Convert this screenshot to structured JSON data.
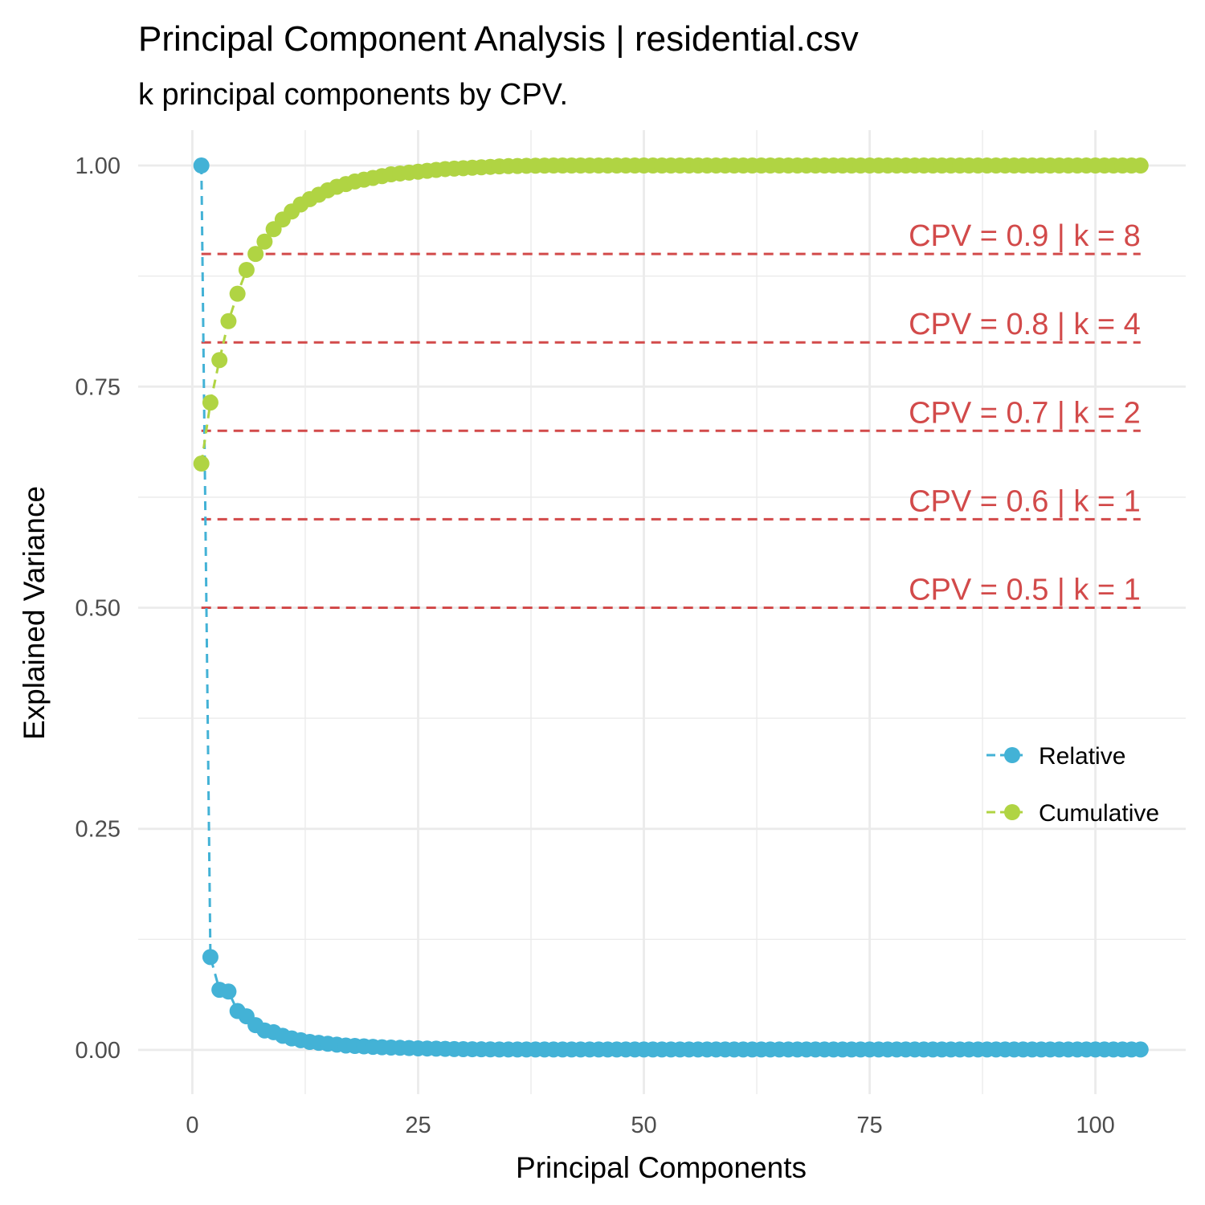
{
  "chart_data": {
    "type": "line",
    "title": "Principal Component Analysis | residential.csv",
    "subtitle": "k principal components by CPV.",
    "xlabel": "Principal Components",
    "ylabel": "Explained Variance",
    "xlim": [
      -6,
      110
    ],
    "ylim": [
      -0.05,
      1.04
    ],
    "x_ticks": [
      0,
      25,
      50,
      75,
      100
    ],
    "x_tick_labels": [
      "0",
      "25",
      "50",
      "75",
      "100"
    ],
    "y_ticks": [
      0,
      0.25,
      0.5,
      0.75,
      1
    ],
    "y_tick_labels": [
      "0.00",
      "0.25",
      "0.50",
      "0.75",
      "1.00"
    ],
    "grid": true,
    "legend_position": "right",
    "n_components": 105,
    "series": [
      {
        "name": "Relative",
        "color": "#43b2d6",
        "line_style": "dashed",
        "values": [
          1.0,
          0.105,
          0.068,
          0.066,
          0.044,
          0.038,
          0.028,
          0.022,
          0.02,
          0.016,
          0.013,
          0.011,
          0.009,
          0.008,
          0.007,
          0.006,
          0.005,
          0.0045,
          0.004,
          0.0035,
          0.003,
          0.0027,
          0.0024,
          0.0021,
          0.0018,
          0.0016,
          0.0014,
          0.0012,
          0.001,
          0.0009,
          0.0008,
          0.0007,
          0.0006,
          0.0005
        ]
      },
      {
        "name": "Cumulative",
        "color": "#b0d443",
        "line_style": "dashed",
        "values": [
          0.663,
          0.732,
          0.78,
          0.824,
          0.855,
          0.882,
          0.9,
          0.914,
          0.928,
          0.939,
          0.948,
          0.956,
          0.962,
          0.967,
          0.972,
          0.976,
          0.979,
          0.982,
          0.984,
          0.986,
          0.988,
          0.99,
          0.991,
          0.992,
          0.993,
          0.994,
          0.995,
          0.996,
          0.9965,
          0.997,
          0.9975,
          0.998,
          0.9985,
          0.999,
          0.9993,
          0.9995,
          0.9997,
          0.9998,
          0.9999,
          1.0
        ]
      }
    ],
    "thresholds": [
      {
        "cpv": 0.9,
        "label": "CPV = 0.9 | k = 8"
      },
      {
        "cpv": 0.8,
        "label": "CPV = 0.8 | k = 4"
      },
      {
        "cpv": 0.7,
        "label": "CPV = 0.7 | k = 2"
      },
      {
        "cpv": 0.6,
        "label": "CPV = 0.6 | k = 1"
      },
      {
        "cpv": 0.5,
        "label": "CPV = 0.5 | k = 1"
      }
    ],
    "threshold_color": "#d24a4a",
    "grid_color": "#ebebeb",
    "tick_color": "#4d4d4d"
  }
}
